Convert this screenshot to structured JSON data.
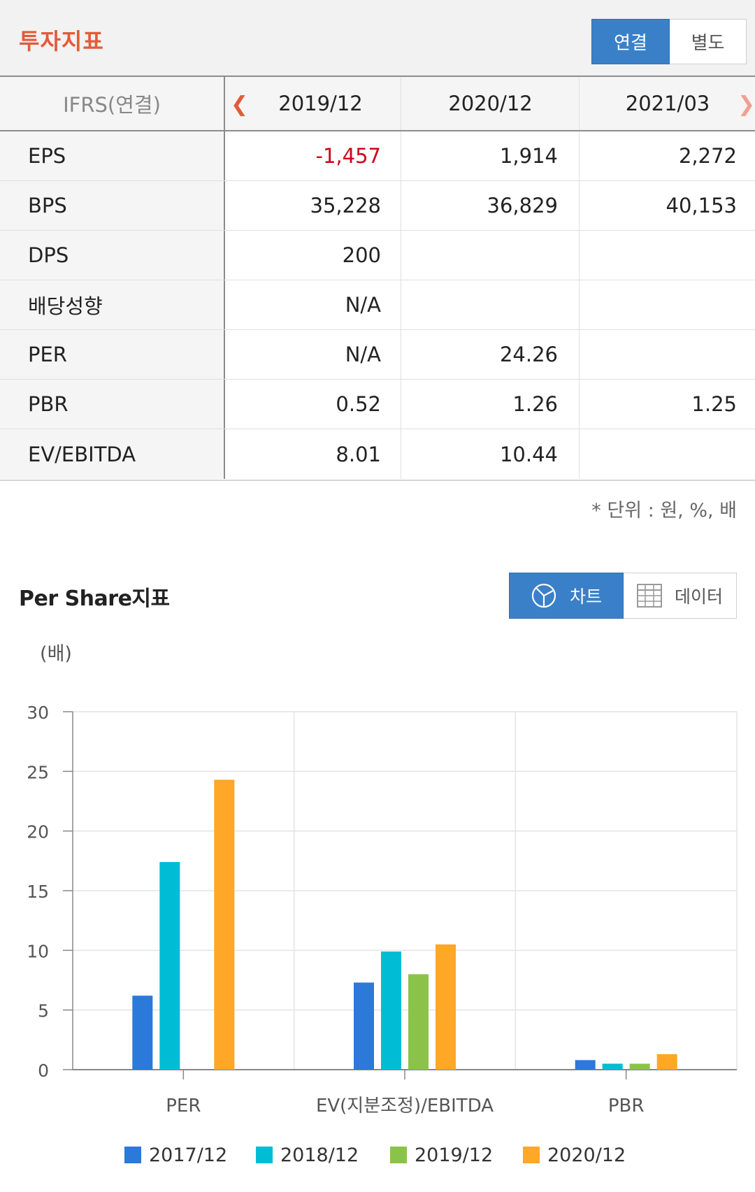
{
  "header": {
    "title": "투자지표",
    "tabs": [
      {
        "label": "연결",
        "active": true
      },
      {
        "label": "별도",
        "active": false
      }
    ]
  },
  "table": {
    "columns": [
      "IFRS(연결)",
      "2019/12",
      "2020/12",
      "2021/03"
    ],
    "rows": [
      {
        "label": "EPS",
        "values": [
          "-1,457",
          "1,914",
          "2,272"
        ]
      },
      {
        "label": "BPS",
        "values": [
          "35,228",
          "36,829",
          "40,153"
        ]
      },
      {
        "label": "DPS",
        "values": [
          "200",
          "",
          ""
        ]
      },
      {
        "label": "배당성향",
        "values": [
          "N/A",
          "",
          ""
        ]
      },
      {
        "label": "PER",
        "values": [
          "N/A",
          "24.26",
          ""
        ]
      },
      {
        "label": "PBR",
        "values": [
          "0.52",
          "1.26",
          "1.25"
        ]
      },
      {
        "label": "EV/EBITDA",
        "values": [
          "8.01",
          "10.44",
          ""
        ]
      }
    ],
    "unit_note": "* 단위 : 원, %, 배"
  },
  "chart_section": {
    "title": "Per Share지표",
    "view_tabs": [
      {
        "label": "차트",
        "icon": "pie-chart-icon",
        "active": true
      },
      {
        "label": "데이터",
        "icon": "grid-table-icon",
        "active": false
      }
    ]
  },
  "chart_data": {
    "type": "bar",
    "ylabel": "(배)",
    "ylim": [
      0,
      30
    ],
    "yticks": [
      0,
      5,
      10,
      15,
      20,
      25,
      30
    ],
    "categories": [
      "PER",
      "EV(지분조정)/EBITDA",
      "PBR"
    ],
    "series": [
      {
        "name": "2017/12",
        "color": "#2b79d9",
        "values": [
          6.2,
          7.3,
          0.8
        ]
      },
      {
        "name": "2018/12",
        "color": "#00bcd4",
        "values": [
          17.4,
          9.9,
          0.5
        ]
      },
      {
        "name": "2019/12",
        "color": "#8bc34a",
        "values": [
          null,
          8.0,
          0.5
        ]
      },
      {
        "name": "2020/12",
        "color": "#ffa726",
        "values": [
          24.3,
          10.5,
          1.3
        ]
      }
    ],
    "grid": true,
    "legend": "bottom"
  }
}
